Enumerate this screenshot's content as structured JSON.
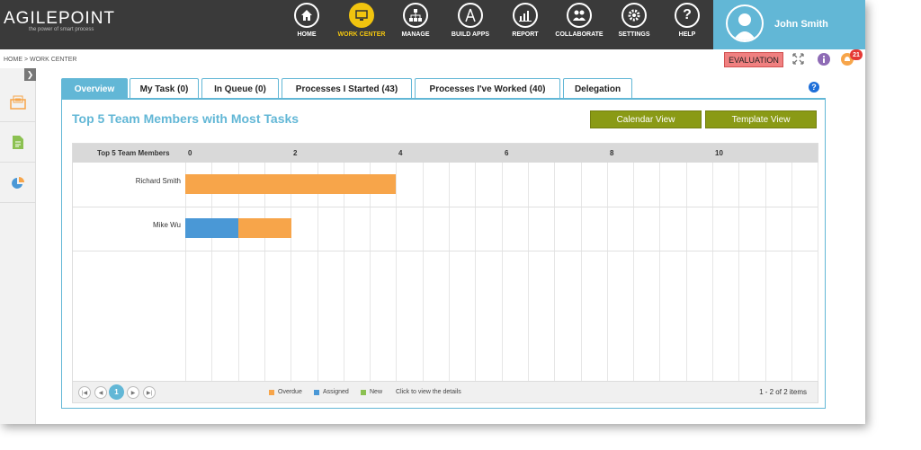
{
  "brand": {
    "name": "AGILEPOINT",
    "tagline": "the power of smart process"
  },
  "nav": [
    {
      "label": "HOME",
      "icon": "home-icon",
      "active": false
    },
    {
      "label": "WORK CENTER",
      "icon": "work-center-icon",
      "active": true
    },
    {
      "label": "MANAGE",
      "icon": "manage-icon",
      "active": false
    },
    {
      "label": "BUILD APPS",
      "icon": "build-apps-icon",
      "active": false
    },
    {
      "label": "REPORT",
      "icon": "report-icon",
      "active": false
    },
    {
      "label": "COLLABORATE",
      "icon": "collaborate-icon",
      "active": false
    },
    {
      "label": "SETTINGS",
      "icon": "settings-icon",
      "active": false
    },
    {
      "label": "HELP",
      "icon": "help-icon",
      "active": false
    }
  ],
  "user": {
    "name": "John Smith"
  },
  "breadcrumb": "HOME > WORK CENTER",
  "evaluation_badge": "EVALUATION",
  "notifications": {
    "count": "21"
  },
  "tabs": [
    {
      "label": "Overview",
      "active": true
    },
    {
      "label": "My Task (0)",
      "active": false
    },
    {
      "label": "In Queue (0)",
      "active": false
    },
    {
      "label": "Processes I Started (43)",
      "active": false
    },
    {
      "label": "Processes I've Worked (40)",
      "active": false
    },
    {
      "label": "Delegation",
      "active": false
    }
  ],
  "panel": {
    "title": "Top 5 Team Members with Most Tasks",
    "calendar_button": "Calendar View",
    "template_button": "Template View",
    "column_header": "Top 5 Team Members"
  },
  "chart_data": {
    "type": "bar",
    "orientation": "horizontal",
    "stacked": true,
    "categories": [
      "Richard Smith",
      "Mike Wu"
    ],
    "series": [
      {
        "name": "Assigned",
        "color": "#4a98d6",
        "values": [
          0,
          1
        ]
      },
      {
        "name": "Overdue",
        "color": "#f7a54a",
        "values": [
          4,
          1
        ]
      },
      {
        "name": "New",
        "color": "#8cc152",
        "values": [
          0,
          0
        ]
      }
    ],
    "x_ticks": [
      "0",
      "2",
      "4",
      "6",
      "8",
      "10"
    ],
    "xlim": [
      0,
      12
    ],
    "minor_grid_step": 0.5,
    "legend_order": [
      "Overdue",
      "Assigned",
      "New"
    ],
    "legend_placement": "bottom"
  },
  "footer": {
    "hint": "Click to view the details",
    "current_page": "1",
    "items": "1 - 2 of 2 items"
  },
  "colors": {
    "accent": "#62b7d6",
    "header_bg": "#3a3a3a",
    "active_nav": "#f1c40f",
    "olive_button": "#8a9a15",
    "evaluation": "#f08080"
  }
}
